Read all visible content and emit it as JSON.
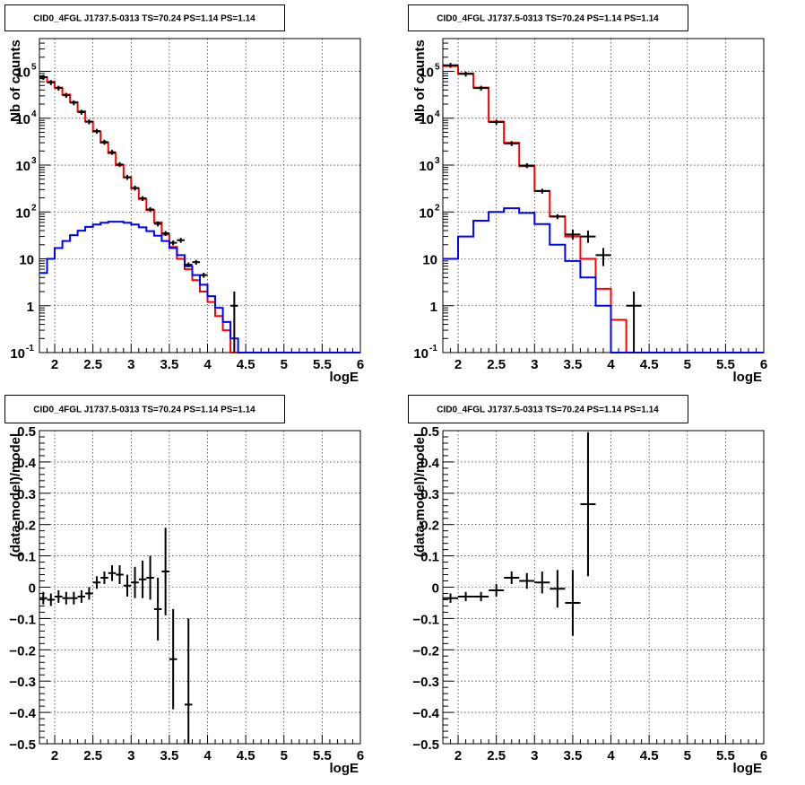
{
  "chart_data": [
    {
      "type": "line",
      "title": "CID0_4FGL J1737.5-0313 TS=70.24 PS=1.14 PS=1.14",
      "xlabel": "logE",
      "ylabel": "Nb of counts",
      "xlim": [
        1.8,
        6.0
      ],
      "ylim": [
        0.1,
        500000
      ],
      "yscale": "log",
      "grid": true,
      "x_ticks": [
        "2",
        "2.5",
        "3",
        "3.5",
        "4",
        "4.5",
        "5",
        "5.5",
        "6"
      ],
      "y_ticks": [
        {
          "base": "10",
          "exp": "-1",
          "v": 0.1
        },
        {
          "base": "1",
          "exp": "",
          "v": 1
        },
        {
          "base": "10",
          "exp": "",
          "v": 10
        },
        {
          "base": "10",
          "exp": "2",
          "v": 100
        },
        {
          "base": "10",
          "exp": "3",
          "v": 1000
        },
        {
          "base": "10",
          "exp": "4",
          "v": 10000
        },
        {
          "base": "10",
          "exp": "5",
          "v": 100000
        }
      ],
      "bin_edges": [
        1.8,
        1.9,
        2.0,
        2.1,
        2.2,
        2.3,
        2.4,
        2.5,
        2.6,
        2.7,
        2.8,
        2.9,
        3.0,
        3.1,
        3.2,
        3.3,
        3.4,
        3.5,
        3.6,
        3.7,
        3.8,
        3.9,
        4.0,
        4.1,
        4.2,
        4.3,
        4.4,
        4.5,
        4.6,
        4.7,
        4.8,
        4.9,
        5.0,
        5.1,
        5.2,
        5.3,
        5.4,
        5.5,
        5.6,
        5.7,
        5.8,
        5.9,
        6.0
      ],
      "series": [
        {
          "color": "#ff0000",
          "values": [
            75000,
            60000,
            45000,
            32000,
            22000,
            14000,
            8500,
            5200,
            3000,
            1800,
            1000,
            550,
            320,
            190,
            110,
            60,
            33,
            18,
            10,
            6,
            3.5,
            2,
            1.2,
            0.6,
            0.3,
            0.1,
            0.1,
            0.1,
            0.1,
            0.1,
            0.1,
            0.1,
            0.1,
            0.1,
            0.1,
            0.1,
            0.1,
            0.1,
            0.1,
            0.1,
            0.1,
            0.1
          ]
        },
        {
          "color": "#0000ff",
          "values": [
            5,
            10,
            17,
            24,
            32,
            40,
            48,
            54,
            59,
            62,
            62,
            59,
            54,
            47,
            39,
            31,
            24,
            17,
            12,
            7,
            4.5,
            2.8,
            1.6,
            0.9,
            0.45,
            0.2,
            0.1,
            0.1,
            0.1,
            0.1,
            0.1,
            0.1,
            0.1,
            0.1,
            0.1,
            0.1,
            0.1,
            0.1,
            0.1,
            0.1,
            0.1,
            0.1
          ]
        }
      ],
      "points": [
        {
          "x": 1.85,
          "y": 75000
        },
        {
          "x": 1.95,
          "y": 58000
        },
        {
          "x": 2.05,
          "y": 44000
        },
        {
          "x": 2.15,
          "y": 31000
        },
        {
          "x": 2.25,
          "y": 21500
        },
        {
          "x": 2.35,
          "y": 13500
        },
        {
          "x": 2.45,
          "y": 8400
        },
        {
          "x": 2.55,
          "y": 5300
        },
        {
          "x": 2.65,
          "y": 3100
        },
        {
          "x": 2.75,
          "y": 1880
        },
        {
          "x": 2.85,
          "y": 1030
        },
        {
          "x": 2.95,
          "y": 550
        },
        {
          "x": 3.05,
          "y": 325
        },
        {
          "x": 3.15,
          "y": 195
        },
        {
          "x": 3.25,
          "y": 113
        },
        {
          "x": 3.35,
          "y": 56
        },
        {
          "x": 3.45,
          "y": 35
        },
        {
          "x": 3.55,
          "y": 22
        },
        {
          "x": 3.65,
          "y": 25
        },
        {
          "x": 3.75,
          "y": 7.5
        },
        {
          "x": 3.85,
          "y": 8.5
        },
        {
          "x": 3.95,
          "y": 4.5
        },
        {
          "x": 4.35,
          "y": 1.0,
          "ylo": 0.1,
          "yhi": 2.0
        }
      ]
    },
    {
      "type": "line",
      "title": "CID0_4FGL J1737.5-0313 TS=70.24 PS=1.14 PS=1.14",
      "xlabel": "logE",
      "ylabel": "Nb of counts",
      "xlim": [
        1.8,
        6.0
      ],
      "ylim": [
        0.1,
        500000
      ],
      "yscale": "log",
      "grid": true,
      "x_ticks": [
        "2",
        "2.5",
        "3",
        "3.5",
        "4",
        "4.5",
        "5",
        "5.5",
        "6"
      ],
      "y_ticks": [
        {
          "base": "10",
          "exp": "-1",
          "v": 0.1
        },
        {
          "base": "1",
          "exp": "",
          "v": 1
        },
        {
          "base": "10",
          "exp": "",
          "v": 10
        },
        {
          "base": "10",
          "exp": "2",
          "v": 100
        },
        {
          "base": "10",
          "exp": "3",
          "v": 1000
        },
        {
          "base": "10",
          "exp": "4",
          "v": 10000
        },
        {
          "base": "10",
          "exp": "5",
          "v": 100000
        }
      ],
      "bin_edges": [
        1.8,
        2.0,
        2.2,
        2.4,
        2.6,
        2.8,
        3.0,
        3.2,
        3.4,
        3.6,
        3.8,
        4.0,
        4.2,
        4.4,
        4.6,
        4.8,
        5.0,
        5.2,
        5.4,
        5.6,
        5.8,
        6.0
      ],
      "series": [
        {
          "color": "#ff0000",
          "values": [
            130000,
            90000,
            45000,
            8500,
            3000,
            950,
            280,
            80,
            30,
            10,
            2.3,
            0.5,
            0.1,
            0.1,
            0.1,
            0.1,
            0.1,
            0.1,
            0.1,
            0.1,
            0.1
          ]
        },
        {
          "color": "#0000ff",
          "values": [
            10,
            30,
            65,
            100,
            120,
            95,
            55,
            20,
            9,
            4,
            1,
            0.1,
            0.1,
            0.1,
            0.1,
            0.1,
            0.1,
            0.1,
            0.1,
            0.1,
            0.1
          ]
        }
      ],
      "points": [
        {
          "x": 1.9,
          "y": 135000
        },
        {
          "x": 2.1,
          "y": 88000
        },
        {
          "x": 2.3,
          "y": 44000
        },
        {
          "x": 2.5,
          "y": 8300
        },
        {
          "x": 2.7,
          "y": 2900
        },
        {
          "x": 2.9,
          "y": 980
        },
        {
          "x": 3.1,
          "y": 280
        },
        {
          "x": 3.3,
          "y": 80
        },
        {
          "x": 3.5,
          "y": 33,
          "ylo": 26,
          "yhi": 42
        },
        {
          "x": 3.7,
          "y": 30,
          "ylo": 22,
          "yhi": 40
        },
        {
          "x": 3.9,
          "y": 12,
          "ylo": 7,
          "yhi": 17
        },
        {
          "x": 4.3,
          "y": 1.0,
          "ylo": 0.1,
          "yhi": 2.0
        }
      ]
    },
    {
      "type": "scatter",
      "title": "CID0_4FGL J1737.5-0313 TS=70.24 PS=1.14 PS=1.14",
      "xlabel": "logE",
      "ylabel": "(data-model)/model",
      "xlim": [
        1.8,
        6.0
      ],
      "ylim": [
        -0.5,
        0.5
      ],
      "grid": true,
      "x_ticks": [
        "2",
        "2.5",
        "3",
        "3.5",
        "4",
        "4.5",
        "5",
        "5.5",
        "6"
      ],
      "y_ticks": [
        "−0.5",
        "−0.4",
        "−0.3",
        "−0.2",
        "−0.1",
        "0",
        "0.1",
        "0.2",
        "0.3",
        "0.4",
        "0.5"
      ],
      "points": [
        {
          "x": 1.85,
          "y": -0.035,
          "err": 0.02
        },
        {
          "x": 1.95,
          "y": -0.04,
          "err": 0.02
        },
        {
          "x": 2.05,
          "y": -0.03,
          "err": 0.02
        },
        {
          "x": 2.15,
          "y": -0.035,
          "err": 0.02
        },
        {
          "x": 2.25,
          "y": -0.035,
          "err": 0.02
        },
        {
          "x": 2.35,
          "y": -0.03,
          "err": 0.02
        },
        {
          "x": 2.45,
          "y": -0.02,
          "err": 0.02
        },
        {
          "x": 2.55,
          "y": 0.015,
          "err": 0.02
        },
        {
          "x": 2.65,
          "y": 0.03,
          "err": 0.02
        },
        {
          "x": 2.75,
          "y": 0.045,
          "err": 0.025
        },
        {
          "x": 2.85,
          "y": 0.04,
          "err": 0.03
        },
        {
          "x": 2.95,
          "y": 0.005,
          "err": 0.035
        },
        {
          "x": 3.05,
          "y": 0.015,
          "err": 0.05
        },
        {
          "x": 3.15,
          "y": 0.025,
          "err": 0.06
        },
        {
          "x": 3.25,
          "y": 0.03,
          "err": 0.07
        },
        {
          "x": 3.35,
          "y": -0.07,
          "err": 0.1
        },
        {
          "x": 3.45,
          "y": 0.05,
          "err": 0.14
        },
        {
          "x": 3.55,
          "y": -0.23,
          "err": 0.16
        },
        {
          "x": 3.75,
          "y": -0.375,
          "err": 0.275
        }
      ]
    },
    {
      "type": "scatter",
      "title": "CID0_4FGL J1737.5-0313 TS=70.24 PS=1.14 PS=1.14",
      "xlabel": "logE",
      "ylabel": "(data-model)/model",
      "xlim": [
        1.8,
        6.0
      ],
      "ylim": [
        -0.5,
        0.5
      ],
      "grid": true,
      "x_ticks": [
        "2",
        "2.5",
        "3",
        "3.5",
        "4",
        "4.5",
        "5",
        "5.5",
        "6"
      ],
      "y_ticks": [
        "−0.5",
        "−0.4",
        "−0.3",
        "−0.2",
        "−0.1",
        "0",
        "0.1",
        "0.2",
        "0.3",
        "0.4",
        "0.5"
      ],
      "points": [
        {
          "x": 1.9,
          "y": -0.035,
          "err": 0.015
        },
        {
          "x": 2.1,
          "y": -0.03,
          "err": 0.015
        },
        {
          "x": 2.3,
          "y": -0.03,
          "err": 0.015
        },
        {
          "x": 2.5,
          "y": -0.01,
          "err": 0.02
        },
        {
          "x": 2.7,
          "y": 0.03,
          "err": 0.02
        },
        {
          "x": 2.9,
          "y": 0.02,
          "err": 0.025
        },
        {
          "x": 3.1,
          "y": 0.015,
          "err": 0.035
        },
        {
          "x": 3.3,
          "y": -0.005,
          "err": 0.06
        },
        {
          "x": 3.5,
          "y": -0.05,
          "err": 0.105
        },
        {
          "x": 3.7,
          "y": 0.265,
          "err": 0.23
        }
      ]
    }
  ]
}
